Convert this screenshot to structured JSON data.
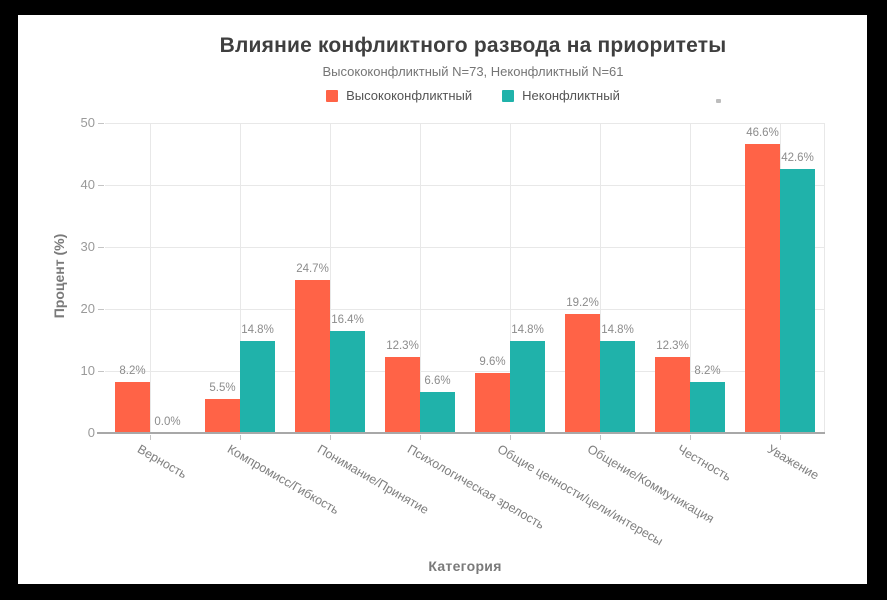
{
  "chart_data": {
    "type": "bar",
    "title": "Влияние конфликтного развода на приоритеты",
    "subtitle": "Высококонфликтный N=73, Неконфликтный N=61",
    "categories": [
      "Верность",
      "Компромисс/Гибкость",
      "Понимание/Принятие",
      "Психологическая зрелость",
      "Общие ценности/цели/интересы",
      "Общение/Коммуникация",
      "Честность",
      "Уважение"
    ],
    "series": [
      {
        "name": "Высококонфликтный",
        "color": "#FF6347",
        "values": [
          8.2,
          5.5,
          24.7,
          12.3,
          9.6,
          19.2,
          12.3,
          46.6
        ]
      },
      {
        "name": "Неконфликтный",
        "color": "#20B2AA",
        "values": [
          0.0,
          14.8,
          16.4,
          6.6,
          14.8,
          14.8,
          8.2,
          42.6
        ]
      }
    ],
    "xlabel": "Категория",
    "ylabel": "Процент (%)",
    "ylim": [
      0,
      50
    ],
    "yticks": [
      0,
      10,
      20,
      30,
      40,
      50
    ],
    "value_suffix": "%",
    "grid": true,
    "legend_position": "top",
    "x_label_rotation_deg": 30
  },
  "style_colors": {
    "frame_border": "#000000",
    "background": "#ffffff",
    "title_text": "#3f3f3f",
    "subtitle_text": "#757575",
    "axis_text": "#9a9a9a",
    "gridline": "#e8e8e8",
    "value_label": "#8c8c8c"
  }
}
